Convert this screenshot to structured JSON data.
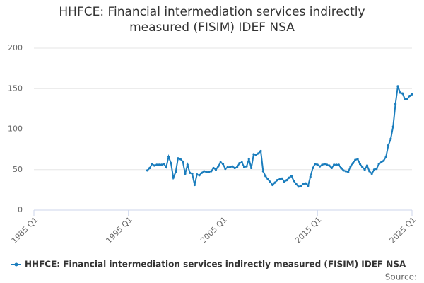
{
  "chart_data": {
    "type": "line",
    "title": "HHFCE: Financial intermediation services indirectly measured (FISIM) IDEF NSA",
    "categories": [
      "1985 Q1",
      null,
      null,
      null,
      null,
      null,
      null,
      null,
      null,
      null,
      null,
      null,
      null,
      null,
      null,
      null,
      null,
      null,
      null,
      null,
      null,
      null,
      null,
      null,
      null,
      null,
      null,
      null,
      null,
      null,
      null,
      null,
      null,
      null,
      null,
      null,
      null,
      null,
      null,
      null,
      "1995 Q1",
      null,
      null,
      null,
      null,
      null,
      null,
      null,
      null,
      null,
      null,
      null,
      null,
      null,
      null,
      null,
      null,
      null,
      null,
      null,
      null,
      null,
      null,
      null,
      null,
      null,
      null,
      null,
      null,
      null,
      null,
      null,
      null,
      null,
      null,
      null,
      null,
      null,
      null,
      null,
      "2005 Q1",
      null,
      null,
      null,
      null,
      null,
      null,
      null,
      null,
      null,
      null,
      null,
      null,
      null,
      null,
      null,
      null,
      null,
      null,
      null,
      null,
      null,
      null,
      null,
      null,
      null,
      null,
      null,
      null,
      null,
      null,
      null,
      null,
      null,
      null,
      null,
      null,
      null,
      null,
      null,
      "2015 Q1",
      null,
      null,
      null,
      null,
      null,
      null,
      null,
      null,
      null,
      null,
      null,
      null,
      null,
      null,
      null,
      null,
      null,
      null,
      null,
      null,
      null,
      null,
      null,
      null,
      null,
      null,
      null,
      null,
      null,
      null,
      null,
      null,
      null,
      null,
      null,
      null,
      null,
      null,
      null,
      "2025 Q1"
    ],
    "series": [
      {
        "name": "HHFCE: Financial intermediation services indirectly measured (FISIM) IDEF NSA",
        "color": "#1a7dbd",
        "values": [
          null,
          null,
          null,
          null,
          null,
          null,
          null,
          null,
          null,
          null,
          null,
          null,
          null,
          null,
          null,
          null,
          null,
          null,
          null,
          null,
          null,
          null,
          null,
          null,
          null,
          null,
          null,
          null,
          null,
          null,
          null,
          null,
          null,
          null,
          null,
          null,
          null,
          null,
          null,
          null,
          null,
          null,
          null,
          null,
          null,
          null,
          null,
          null,
          49,
          52,
          57,
          55,
          56,
          56,
          56,
          57,
          53,
          66,
          58,
          40,
          47,
          64,
          63,
          60,
          45,
          56,
          46,
          45,
          31,
          44,
          43,
          46,
          48,
          47,
          47,
          48,
          52,
          50,
          54,
          59,
          57,
          51,
          53,
          53,
          54,
          52,
          53,
          58,
          59,
          53,
          54,
          63,
          52,
          69,
          68,
          70,
          73,
          48,
          42,
          38,
          35,
          31,
          34,
          37,
          38,
          39,
          35,
          37,
          40,
          42,
          36,
          32,
          29,
          30,
          32,
          33,
          30,
          41,
          52,
          57,
          56,
          54,
          56,
          57,
          56,
          55,
          52,
          56,
          56,
          56,
          52,
          49,
          48,
          47,
          54,
          58,
          62,
          63,
          57,
          53,
          50,
          55,
          48,
          45,
          50,
          51,
          57,
          59,
          61,
          66,
          80,
          88,
          103,
          131,
          153,
          145,
          144,
          137,
          137,
          141,
          143
        ]
      }
    ],
    "ylim": [
      0,
      200
    ],
    "yticks": [
      0,
      50,
      100,
      150,
      200
    ],
    "grid": true,
    "source": "Source:"
  }
}
